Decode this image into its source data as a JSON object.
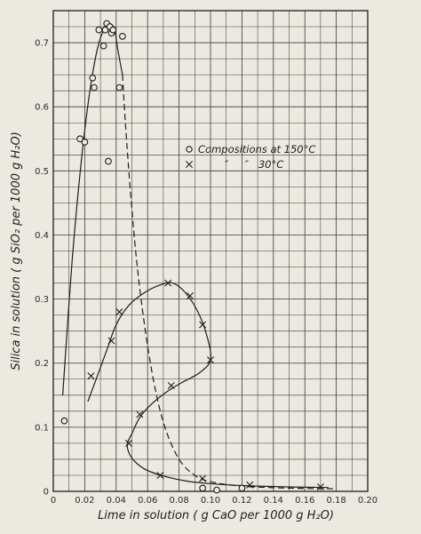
{
  "chart_data": {
    "type": "scatter",
    "xlabel": "Lime in solution ( g CaO per 1000 g H₂O)",
    "ylabel": "Silica in solution ( g SiO₂ per 1000 g H₂O)",
    "xlim": [
      0,
      0.2
    ],
    "ylim": [
      0,
      0.75
    ],
    "x_ticks": [
      "0",
      "0.02",
      "0.04",
      "0.06",
      "0.08",
      "0.10",
      "0.12",
      "0.14",
      "0.16",
      "0.18",
      "0.20"
    ],
    "y_ticks": [
      "0",
      "0.1",
      "0.2",
      "0.3",
      "0.4",
      "0.5",
      "0.6",
      "0.7"
    ],
    "grid": true,
    "legend_position": "top-right",
    "series": [
      {
        "name": "Compositions at 150°C",
        "marker": "circle",
        "values": [
          {
            "x": 0.007,
            "y": 0.11
          },
          {
            "x": 0.017,
            "y": 0.55
          },
          {
            "x": 0.02,
            "y": 0.545
          },
          {
            "x": 0.025,
            "y": 0.645
          },
          {
            "x": 0.026,
            "y": 0.63
          },
          {
            "x": 0.029,
            "y": 0.72
          },
          {
            "x": 0.032,
            "y": 0.695
          },
          {
            "x": 0.033,
            "y": 0.72
          },
          {
            "x": 0.034,
            "y": 0.73
          },
          {
            "x": 0.035,
            "y": 0.515
          },
          {
            "x": 0.036,
            "y": 0.725
          },
          {
            "x": 0.037,
            "y": 0.715
          },
          {
            "x": 0.038,
            "y": 0.72
          },
          {
            "x": 0.042,
            "y": 0.63
          },
          {
            "x": 0.044,
            "y": 0.71
          },
          {
            "x": 0.095,
            "y": 0.005
          },
          {
            "x": 0.104,
            "y": 0.002
          },
          {
            "x": 0.12,
            "y": 0.005
          }
        ]
      },
      {
        "name": "″     ″   30°C",
        "marker": "x",
        "values": [
          {
            "x": 0.024,
            "y": 0.18
          },
          {
            "x": 0.037,
            "y": 0.235
          },
          {
            "x": 0.042,
            "y": 0.28
          },
          {
            "x": 0.048,
            "y": 0.075
          },
          {
            "x": 0.055,
            "y": 0.12
          },
          {
            "x": 0.068,
            "y": 0.025
          },
          {
            "x": 0.073,
            "y": 0.325
          },
          {
            "x": 0.075,
            "y": 0.165
          },
          {
            "x": 0.087,
            "y": 0.305
          },
          {
            "x": 0.095,
            "y": 0.26
          },
          {
            "x": 0.095,
            "y": 0.02
          },
          {
            "x": 0.1,
            "y": 0.205
          },
          {
            "x": 0.125,
            "y": 0.01
          },
          {
            "x": 0.17,
            "y": 0.007
          }
        ]
      }
    ],
    "curves": [
      {
        "style": "solid",
        "points": [
          [
            0.006,
            0.15
          ],
          [
            0.012,
            0.36
          ],
          [
            0.018,
            0.52
          ],
          [
            0.023,
            0.62
          ],
          [
            0.028,
            0.69
          ],
          [
            0.033,
            0.725
          ],
          [
            0.036,
            0.73
          ],
          [
            0.039,
            0.72
          ],
          [
            0.041,
            0.69
          ],
          [
            0.044,
            0.65
          ]
        ]
      },
      {
        "style": "dashed",
        "points": [
          [
            0.044,
            0.65
          ],
          [
            0.046,
            0.57
          ],
          [
            0.049,
            0.47
          ],
          [
            0.053,
            0.36
          ],
          [
            0.058,
            0.26
          ],
          [
            0.064,
            0.17
          ],
          [
            0.071,
            0.1
          ],
          [
            0.08,
            0.05
          ],
          [
            0.09,
            0.025
          ],
          [
            0.1,
            0.015
          ],
          [
            0.12,
            0.008
          ],
          [
            0.15,
            0.005
          ],
          [
            0.18,
            0.004
          ]
        ]
      },
      {
        "style": "solid",
        "points": [
          [
            0.022,
            0.14
          ],
          [
            0.028,
            0.18
          ],
          [
            0.034,
            0.22
          ],
          [
            0.04,
            0.26
          ],
          [
            0.048,
            0.29
          ],
          [
            0.058,
            0.31
          ],
          [
            0.068,
            0.322
          ],
          [
            0.076,
            0.325
          ],
          [
            0.084,
            0.31
          ],
          [
            0.092,
            0.28
          ],
          [
            0.098,
            0.24
          ],
          [
            0.1,
            0.205
          ],
          [
            0.093,
            0.185
          ],
          [
            0.082,
            0.17
          ],
          [
            0.072,
            0.155
          ],
          [
            0.062,
            0.135
          ],
          [
            0.055,
            0.115
          ],
          [
            0.05,
            0.09
          ],
          [
            0.047,
            0.072
          ],
          [
            0.05,
            0.052
          ],
          [
            0.058,
            0.035
          ],
          [
            0.07,
            0.024
          ],
          [
            0.085,
            0.016
          ],
          [
            0.1,
            0.012
          ],
          [
            0.12,
            0.009
          ],
          [
            0.15,
            0.007
          ],
          [
            0.175,
            0.006
          ]
        ]
      }
    ]
  }
}
